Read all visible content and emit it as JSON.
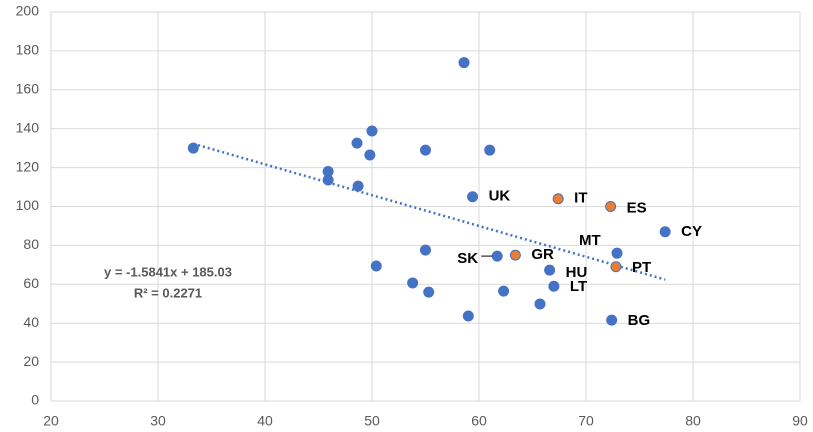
{
  "chart_data": {
    "type": "scatter",
    "x": [
      33.3,
      58.6,
      50,
      48.6,
      49.8,
      55,
      61,
      45.9,
      45.9,
      48.7,
      59.4,
      67.4,
      72.3,
      77.4,
      72.9,
      55,
      61.7,
      63.4,
      66.6,
      72.8,
      50.4,
      53.8,
      55.3,
      62.3,
      67,
      65.7,
      59,
      72.4
    ],
    "y": [
      130,
      174,
      138.8,
      132.6,
      126.5,
      129,
      129,
      118,
      113.6,
      110.5,
      105,
      104,
      100,
      87,
      76,
      77.6,
      74.5,
      75,
      67.3,
      69,
      69.4,
      60.7,
      56,
      56.5,
      59,
      49.9,
      43.7,
      41.6
    ],
    "labels": [
      null,
      null,
      null,
      null,
      null,
      null,
      null,
      null,
      null,
      null,
      "UK",
      "IT",
      "ES",
      "CY",
      "MT",
      null,
      "SK",
      "GR",
      "HU",
      "PT",
      null,
      null,
      null,
      null,
      "LT",
      null,
      null,
      "BG"
    ],
    "colors": [
      "#4472c4",
      "#4472c4",
      "#4472c4",
      "#4472c4",
      "#4472c4",
      "#4472c4",
      "#4472c4",
      "#4472c4",
      "#4472c4",
      "#4472c4",
      "#4472c4",
      "#ed7d31",
      "#ed7d31",
      "#4472c4",
      "#4472c4",
      "#4472c4",
      "#4472c4",
      "#ed7d31",
      "#4472c4",
      "#ed7d31",
      "#4472c4",
      "#4472c4",
      "#4472c4",
      "#4472c4",
      "#4472c4",
      "#4472c4",
      "#4472c4",
      "#4472c4"
    ],
    "xlim": [
      20,
      90
    ],
    "xticks": [
      20,
      30,
      40,
      50,
      60,
      70,
      80,
      90
    ],
    "ylim": [
      0,
      200
    ],
    "yticks": [
      0,
      20,
      40,
      60,
      80,
      100,
      120,
      140,
      160,
      180,
      200
    ],
    "grid": true,
    "trendline": {
      "slope": -1.5841,
      "intercept": 185.03,
      "color": "#4472c4",
      "equation": "y = -1.5841x + 185.03",
      "r_squared_label": "R² = 0.2271",
      "r_squared": 0.2271
    }
  }
}
